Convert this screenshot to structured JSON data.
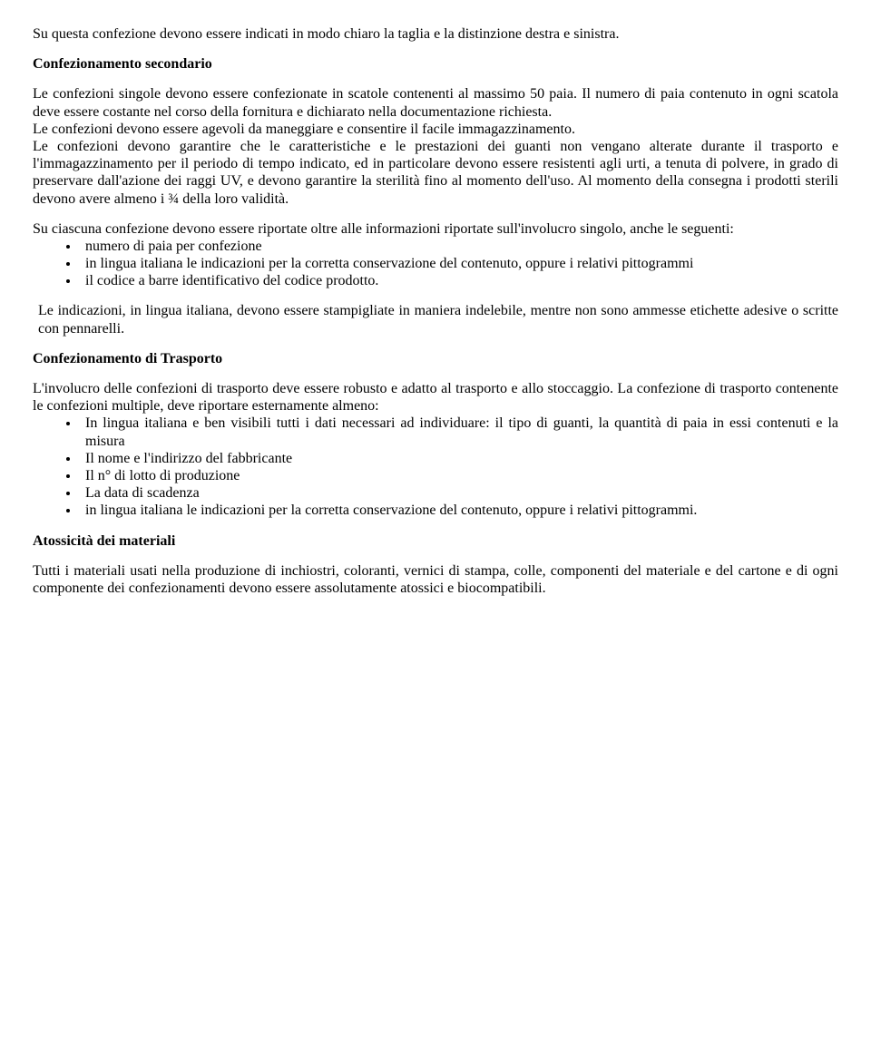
{
  "p1": "Su questa confezione devono essere indicati in modo chiaro la taglia e la distinzione destra e sinistra.",
  "h1": "Confezionamento secondario",
  "p2": "Le confezioni singole devono essere confezionate in scatole contenenti al massimo 50 paia. Il numero di paia contenuto in ogni scatola deve essere costante nel corso della fornitura e dichiarato nella documentazione richiesta.",
  "p3": "Le confezioni devono essere agevoli da maneggiare e consentire il facile immagazzinamento.",
  "p4": "Le confezioni devono garantire che le caratteristiche e le prestazioni dei guanti non vengano alterate durante il trasporto e l'immagazzinamento per il periodo di tempo indicato, ed in particolare devono essere resistenti agli urti, a tenuta di polvere, in grado di preservare dall'azione dei raggi UV, e devono garantire la sterilità fino al momento dell'uso. Al momento della consegna i prodotti sterili devono avere almeno i ¾ della loro validità.",
  "p5": "Su ciascuna confezione devono essere riportate oltre alle informazioni riportate sull'involucro singolo, anche le seguenti:",
  "list1": [
    "numero di paia per confezione",
    "in lingua italiana le indicazioni per la corretta conservazione del contenuto, oppure i relativi pittogrammi",
    "il codice a barre identificativo del codice prodotto."
  ],
  "p6": "Le indicazioni, in lingua italiana, devono essere stampigliate in maniera indelebile, mentre non sono ammesse etichette adesive o scritte con pennarelli.",
  "h2": "Confezionamento di Trasporto",
  "p7": "L'involucro delle confezioni di trasporto deve essere robusto e adatto al trasporto e allo stoccaggio. La confezione di trasporto contenente le confezioni multiple, deve riportare esternamente almeno:",
  "list2": [
    "In lingua italiana e ben visibili tutti i dati necessari ad individuare: il tipo di guanti, la quantità di paia in essi contenuti e la misura",
    "Il nome e l'indirizzo del fabbricante",
    "Il n° di lotto di produzione",
    "La data di scadenza",
    "in lingua italiana le indicazioni per la corretta conservazione del contenuto, oppure i relativi pittogrammi."
  ],
  "h3": "Atossicità dei materiali",
  "p8": "Tutti i materiali usati nella produzione di inchiostri, coloranti, vernici di stampa, colle, componenti del materiale e del cartone e di ogni componente dei confezionamenti devono essere assolutamente atossici e biocompatibili."
}
